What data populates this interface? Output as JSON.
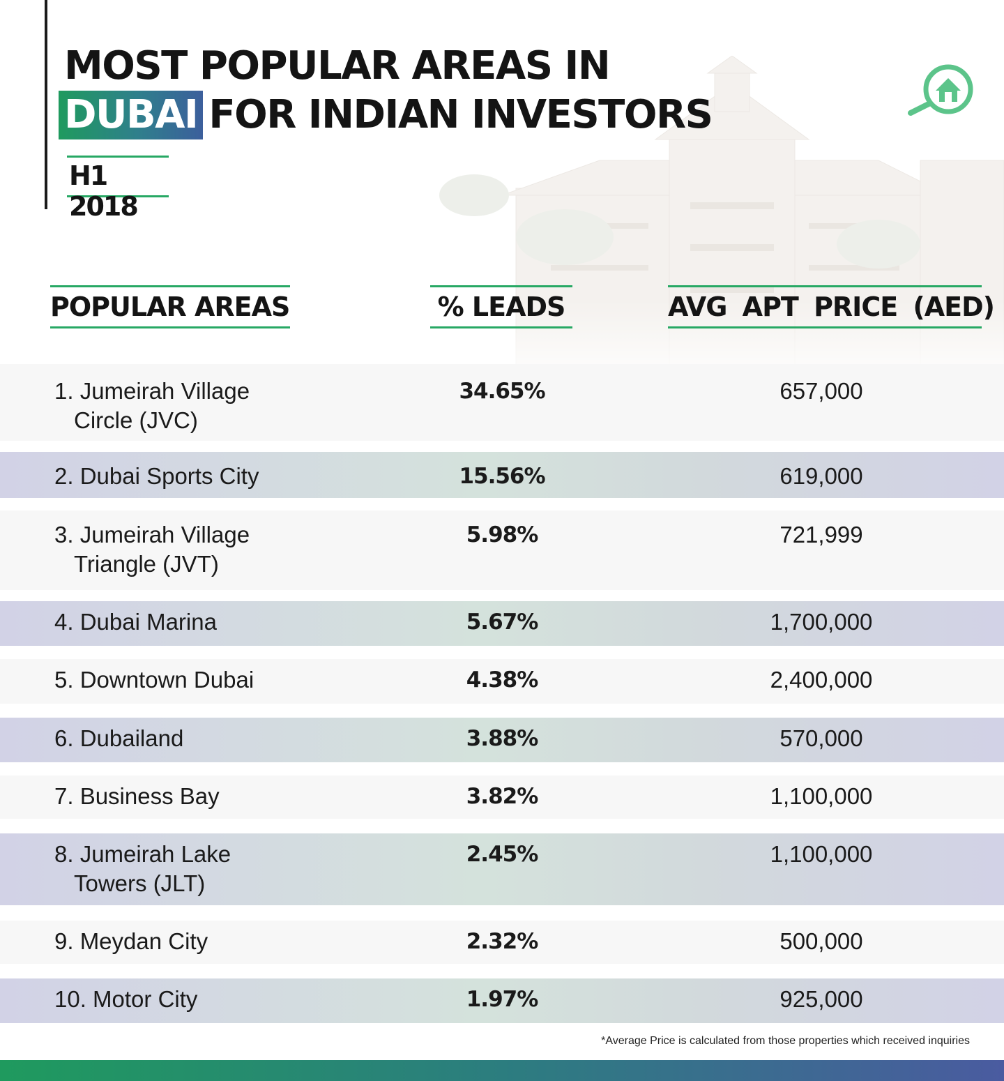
{
  "header": {
    "title_line1": "MOST POPULAR AREAS IN",
    "title_highlight": "DUBAI",
    "title_line2_rest": "FOR INDIAN INVESTORS",
    "period": "H1 2018",
    "accent_green": "#27a864",
    "accent_blue": "#4a5ba0"
  },
  "logo": {
    "icon": "magnifier-house-icon",
    "color": "#5cc48a"
  },
  "table": {
    "headers": {
      "area": "POPULAR AREAS",
      "leads": "% LEADS",
      "price": "AVG APT PRICE (AED)"
    },
    "rows": [
      {
        "area_line1": "1. Jumeirah Village",
        "area_line2": "Circle (JVC)",
        "leads": "34.65%",
        "price": "657,000"
      },
      {
        "area_line1": "2. Dubai Sports City",
        "area_line2": "",
        "leads": "15.56%",
        "price": "619,000"
      },
      {
        "area_line1": "3. Jumeirah Village",
        "area_line2": "Triangle (JVT)",
        "leads": "5.98%",
        "price": "721,999"
      },
      {
        "area_line1": "4. Dubai Marina",
        "area_line2": "",
        "leads": "5.67%",
        "price": "1,700,000"
      },
      {
        "area_line1": "5. Downtown Dubai",
        "area_line2": "",
        "leads": "4.38%",
        "price": "2,400,000"
      },
      {
        "area_line1": "6. Dubailand",
        "area_line2": "",
        "leads": "3.88%",
        "price": "570,000"
      },
      {
        "area_line1": "7. Business Bay",
        "area_line2": "",
        "leads": "3.82%",
        "price": "1,100,000"
      },
      {
        "area_line1": "8. Jumeirah Lake",
        "area_line2": "Towers (JLT)",
        "leads": "2.45%",
        "price": "1,100,000"
      },
      {
        "area_line1": "9. Meydan City",
        "area_line2": "",
        "leads": "2.32%",
        "price": "500,000"
      },
      {
        "area_line1": "10. Motor City",
        "area_line2": "",
        "leads": "1.97%",
        "price": "925,000"
      }
    ]
  },
  "footnote": "*Average Price is calculated from those properties which received inquiries"
}
